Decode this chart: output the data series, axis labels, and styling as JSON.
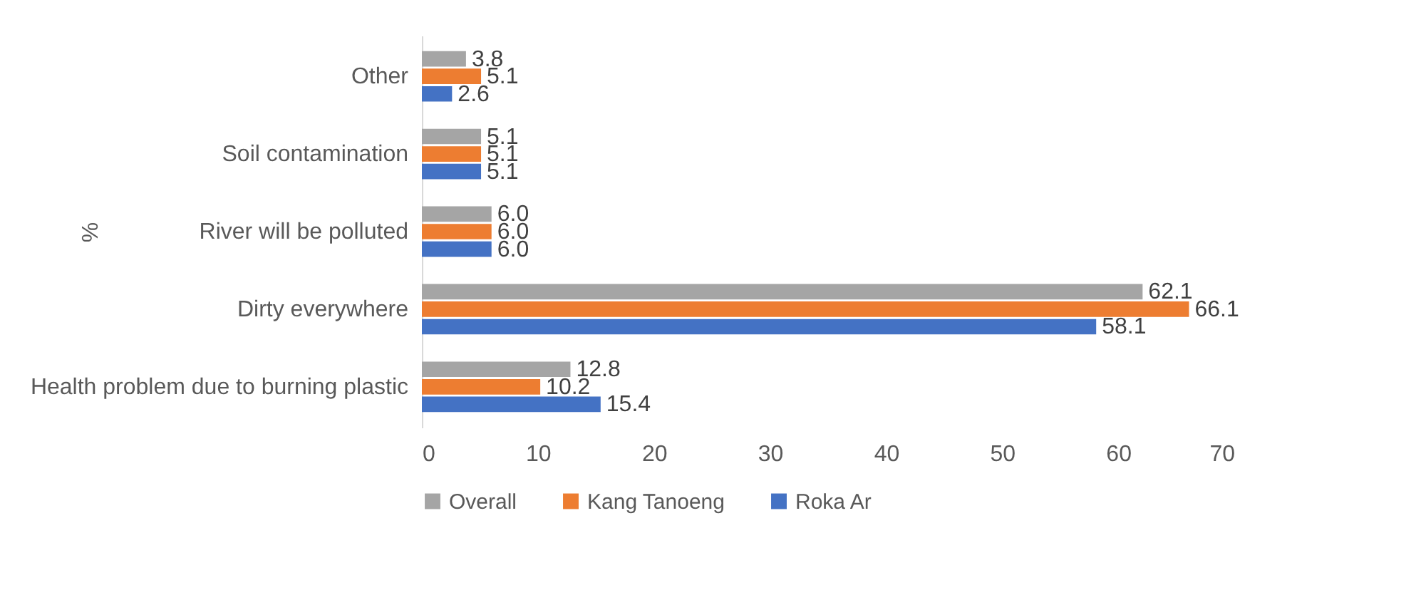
{
  "chart_data": {
    "type": "bar",
    "orientation": "horizontal",
    "ylabel": "%",
    "categories": [
      "Other",
      "Soil contamination",
      "River will be polluted",
      "Dirty everywhere",
      "Health problem due to burning plastic"
    ],
    "series": [
      {
        "name": "Overall",
        "color": "#a5a5a5",
        "values": [
          3.8,
          5.1,
          6.0,
          62.1,
          12.8
        ],
        "value_labels": [
          "3.8",
          "5.1",
          "6.0",
          "62.1",
          "12.8"
        ]
      },
      {
        "name": "Kang Tanoeng",
        "color": "#ed7d31",
        "values": [
          5.1,
          5.1,
          6.0,
          66.1,
          10.2
        ],
        "value_labels": [
          "5.1",
          "5.1",
          "6.0",
          "66.1",
          "10.2"
        ]
      },
      {
        "name": "Roka Ar",
        "color": "#4472c4",
        "values": [
          2.6,
          5.1,
          6.0,
          58.1,
          15.4
        ],
        "value_labels": [
          "2.6",
          "5.1",
          "6.0",
          "58.1",
          "15.4"
        ]
      }
    ],
    "xlim": [
      0,
      70
    ],
    "xticks": [
      0,
      10,
      20,
      30,
      40,
      50,
      60,
      70
    ],
    "grid": false,
    "legend": "bottom"
  }
}
